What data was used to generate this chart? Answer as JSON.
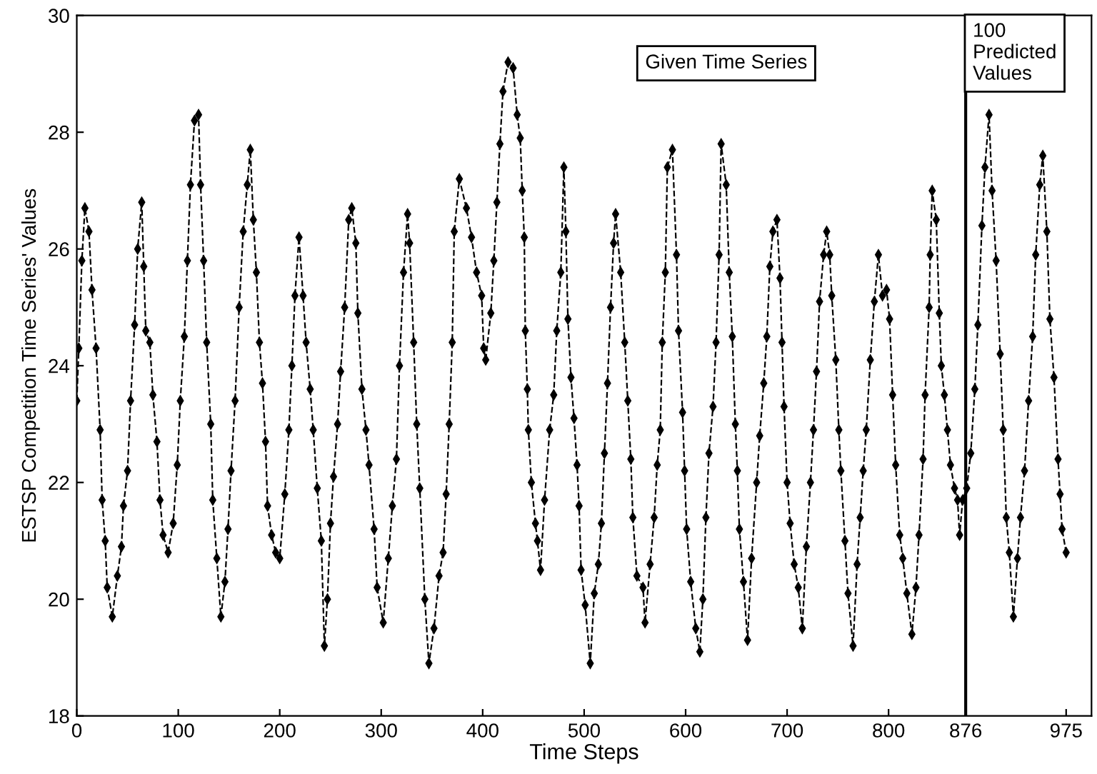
{
  "chart_data": {
    "type": "line",
    "xlabel": "Time Steps",
    "ylabel": "ESTSP Competition Time Series' Values",
    "annotations": [
      "Given Time Series",
      "100\nPredicted\nValues"
    ],
    "xlim": [
      0,
      1000
    ],
    "ylim": [
      18,
      30
    ],
    "xticks": [
      0,
      100,
      200,
      300,
      400,
      500,
      600,
      700,
      800,
      876,
      975
    ],
    "yticks": [
      18,
      20,
      22,
      24,
      26,
      28,
      30
    ],
    "grid": false,
    "legend": false,
    "marker": "diamond",
    "line_style": "dashed",
    "ref_lines": [
      {
        "axis": "x",
        "value": 876,
        "color": "#000000",
        "line_style": "solid"
      }
    ],
    "series": [
      {
        "color": "#000000",
        "x": [
          0,
          2,
          5,
          8,
          12,
          15,
          19,
          23,
          25,
          28,
          30,
          35,
          40,
          44,
          46,
          50,
          53,
          57,
          60,
          64,
          66,
          68,
          72,
          75,
          79,
          82,
          85,
          90,
          95,
          99,
          102,
          106,
          109,
          112,
          116,
          120,
          122,
          125,
          128,
          132,
          134,
          138,
          142,
          146,
          149,
          152,
          156,
          160,
          164,
          168,
          171,
          174,
          177,
          180,
          183,
          186,
          188,
          192,
          196,
          200,
          205,
          209,
          212,
          215,
          219,
          223,
          226,
          230,
          233,
          237,
          241,
          244,
          247,
          250,
          253,
          257,
          260,
          264,
          268,
          271,
          275,
          277,
          281,
          285,
          288,
          293,
          296,
          302,
          307,
          311,
          315,
          318,
          322,
          326,
          328,
          332,
          335,
          338,
          343,
          347,
          352,
          357,
          361,
          364,
          367,
          370,
          372,
          377,
          384,
          389,
          394,
          399,
          401,
          403,
          408,
          411,
          414,
          417,
          420,
          425,
          430,
          434,
          437,
          439,
          441,
          442,
          444,
          445,
          448,
          452,
          454,
          457,
          461,
          466,
          470,
          473,
          477,
          480,
          482,
          484,
          487,
          490,
          493,
          495,
          497,
          501,
          506,
          510,
          514,
          517,
          520,
          523,
          526,
          529,
          531,
          536,
          540,
          543,
          546,
          548,
          552,
          558,
          560,
          565,
          569,
          572,
          575,
          577,
          580,
          582,
          587,
          591,
          593,
          597,
          599,
          601,
          605,
          610,
          614,
          617,
          620,
          623,
          627,
          630,
          633,
          635,
          640,
          643,
          646,
          649,
          651,
          653,
          657,
          661,
          665,
          670,
          673,
          677,
          680,
          683,
          686,
          690,
          693,
          695,
          697,
          700,
          703,
          707,
          711,
          715,
          719,
          723,
          726,
          729,
          732,
          736,
          739,
          742,
          744,
          748,
          751,
          753,
          757,
          760,
          765,
          769,
          772,
          775,
          778,
          782,
          786,
          790,
          794,
          798,
          801,
          804,
          807,
          811,
          814,
          818,
          823,
          827,
          830,
          834,
          836,
          840,
          841,
          843,
          847,
          850,
          852,
          855,
          858,
          861,
          865,
          868,
          870,
          873,
          877,
          881,
          885,
          888,
          892,
          895,
          899,
          902,
          906,
          910,
          913,
          916,
          919,
          923,
          927,
          930,
          934,
          938,
          942,
          945,
          949,
          952,
          956,
          959,
          963,
          967,
          969,
          971,
          975
        ],
        "values": [
          23.4,
          24.3,
          25.8,
          26.7,
          26.3,
          25.3,
          24.3,
          22.9,
          21.7,
          21.0,
          20.2,
          19.7,
          20.4,
          20.9,
          21.6,
          22.2,
          23.4,
          24.7,
          26.0,
          26.8,
          25.7,
          24.6,
          24.4,
          23.5,
          22.7,
          21.7,
          21.1,
          20.8,
          21.3,
          22.3,
          23.4,
          24.5,
          25.8,
          27.1,
          28.2,
          28.3,
          27.1,
          25.8,
          24.4,
          23.0,
          21.7,
          20.7,
          19.7,
          20.3,
          21.2,
          22.2,
          23.4,
          25.0,
          26.3,
          27.1,
          27.7,
          26.5,
          25.6,
          24.4,
          23.7,
          22.7,
          21.6,
          21.1,
          20.8,
          20.7,
          21.8,
          22.9,
          24.0,
          25.2,
          26.2,
          25.2,
          24.4,
          23.6,
          22.9,
          21.9,
          21.0,
          19.2,
          20.0,
          21.3,
          22.1,
          23.0,
          23.9,
          25.0,
          26.5,
          26.7,
          26.1,
          24.9,
          23.6,
          22.9,
          22.3,
          21.2,
          20.2,
          19.6,
          20.7,
          21.6,
          22.4,
          24.0,
          25.6,
          26.6,
          26.1,
          24.4,
          23.0,
          21.9,
          20.0,
          18.9,
          19.5,
          20.4,
          20.8,
          21.8,
          23.0,
          24.4,
          26.3,
          27.2,
          26.7,
          26.2,
          25.6,
          25.2,
          24.3,
          24.1,
          24.9,
          25.8,
          26.8,
          27.8,
          28.7,
          29.2,
          29.1,
          28.3,
          27.9,
          27.0,
          26.2,
          24.6,
          23.6,
          22.9,
          22.0,
          21.3,
          21.0,
          20.5,
          21.7,
          22.9,
          23.5,
          24.6,
          25.6,
          27.4,
          26.3,
          24.8,
          23.8,
          23.1,
          22.3,
          21.6,
          20.5,
          19.9,
          18.9,
          20.1,
          20.6,
          21.3,
          22.5,
          23.7,
          25.0,
          26.1,
          26.6,
          25.6,
          24.4,
          23.4,
          22.4,
          21.4,
          20.4,
          20.2,
          19.6,
          20.6,
          21.4,
          22.3,
          22.9,
          24.4,
          25.6,
          27.4,
          27.7,
          25.9,
          24.6,
          23.2,
          22.2,
          21.2,
          20.3,
          19.5,
          19.1,
          20.0,
          21.4,
          22.5,
          23.3,
          24.4,
          25.9,
          27.8,
          27.1,
          25.6,
          24.5,
          23.0,
          22.2,
          21.2,
          20.3,
          19.3,
          20.7,
          22.0,
          22.8,
          23.7,
          24.5,
          25.7,
          26.3,
          26.5,
          25.5,
          24.4,
          23.3,
          22.0,
          21.3,
          20.6,
          20.2,
          19.5,
          20.9,
          22.0,
          22.9,
          23.9,
          25.1,
          25.9,
          26.3,
          25.9,
          25.2,
          24.1,
          22.9,
          22.2,
          21.0,
          20.1,
          19.2,
          20.6,
          21.4,
          22.2,
          22.9,
          24.1,
          25.1,
          25.9,
          25.2,
          25.3,
          24.8,
          23.5,
          22.3,
          21.1,
          20.7,
          20.1,
          19.4,
          20.2,
          21.1,
          22.4,
          23.5,
          25.0,
          25.9,
          27.0,
          26.5,
          24.9,
          24.0,
          23.5,
          22.9,
          22.3,
          21.9,
          21.7,
          21.1,
          21.7,
          21.9,
          22.5,
          23.6,
          24.7,
          26.4,
          27.4,
          28.3,
          27.0,
          25.8,
          24.2,
          22.9,
          21.4,
          20.8,
          19.7,
          20.7,
          21.4,
          22.2,
          23.4,
          24.5,
          25.9,
          27.1,
          27.6,
          26.3,
          24.8,
          23.8,
          22.4,
          21.8,
          21.2,
          20.8
        ]
      }
    ]
  }
}
